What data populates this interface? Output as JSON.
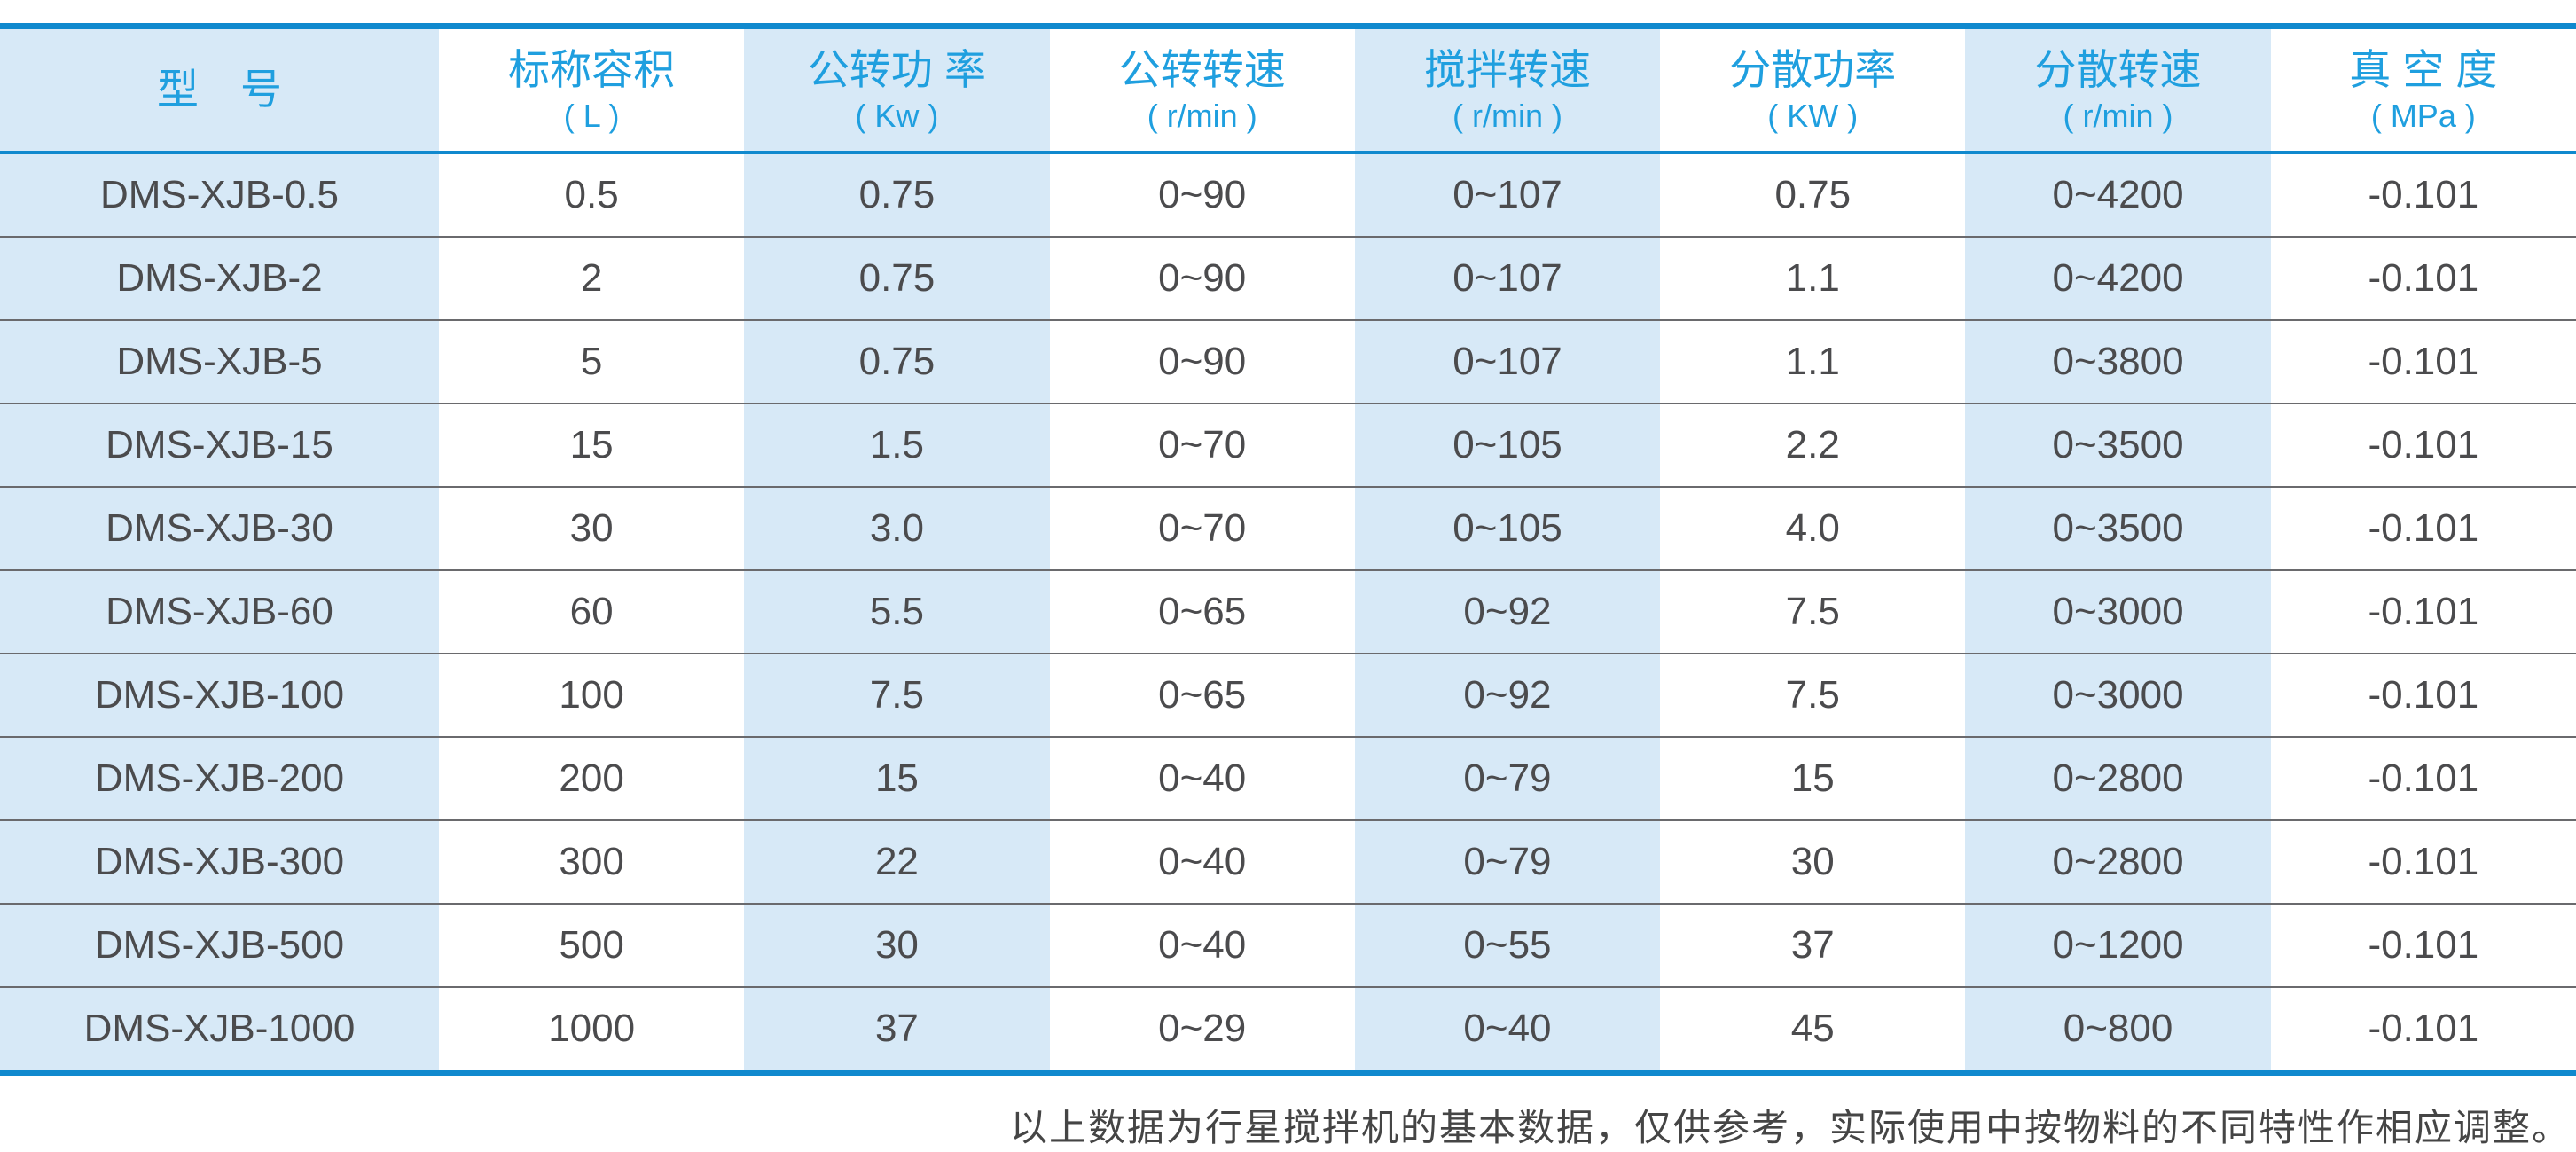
{
  "colors": {
    "accent_blue_border": "#1089CE",
    "header_text_blue": "#1F9FDF",
    "cell_light_blue": "#D7E9F7",
    "body_text_gray": "#4B4B4D",
    "row_divider_gray": "#6A6A6D"
  },
  "chart_data": {
    "type": "table",
    "title": "",
    "columns": [
      {
        "label": "型　号",
        "unit": ""
      },
      {
        "label": "标称容积",
        "unit": "( L )"
      },
      {
        "label": "公转功 率",
        "unit": "( Kw )"
      },
      {
        "label": "公转转速",
        "unit": "( r/min )"
      },
      {
        "label": "搅拌转速",
        "unit": "( r/min )"
      },
      {
        "label": "分散功率",
        "unit": "( KW )"
      },
      {
        "label": "分散转速",
        "unit": "( r/min )"
      },
      {
        "label": "真 空 度",
        "unit": "( MPa )"
      }
    ],
    "rows": [
      [
        "DMS-XJB-0.5",
        "0.5",
        "0.75",
        "0~90",
        "0~107",
        "0.75",
        "0~4200",
        "-0.101"
      ],
      [
        "DMS-XJB-2",
        "2",
        "0.75",
        "0~90",
        "0~107",
        "1.1",
        "0~4200",
        "-0.101"
      ],
      [
        "DMS-XJB-5",
        "5",
        "0.75",
        "0~90",
        "0~107",
        "1.1",
        "0~3800",
        "-0.101"
      ],
      [
        "DMS-XJB-15",
        "15",
        "1.5",
        "0~70",
        "0~105",
        "2.2",
        "0~3500",
        "-0.101"
      ],
      [
        "DMS-XJB-30",
        "30",
        "3.0",
        "0~70",
        "0~105",
        "4.0",
        "0~3500",
        "-0.101"
      ],
      [
        "DMS-XJB-60",
        "60",
        "5.5",
        "0~65",
        "0~92",
        "7.5",
        "0~3000",
        "-0.101"
      ],
      [
        "DMS-XJB-100",
        "100",
        "7.5",
        "0~65",
        "0~92",
        "7.5",
        "0~3000",
        "-0.101"
      ],
      [
        "DMS-XJB-200",
        "200",
        "15",
        "0~40",
        "0~79",
        "15",
        "0~2800",
        "-0.101"
      ],
      [
        "DMS-XJB-300",
        "300",
        "22",
        "0~40",
        "0~79",
        "30",
        "0~2800",
        "-0.101"
      ],
      [
        "DMS-XJB-500",
        "500",
        "30",
        "0~40",
        "0~55",
        "37",
        "0~1200",
        "-0.101"
      ],
      [
        "DMS-XJB-1000",
        "1000",
        "37",
        "0~29",
        "0~40",
        "45",
        "0~800",
        "-0.101"
      ]
    ],
    "footnote": "以上数据为行星搅拌机的基本数据，仅供参考，实际使用中按物料的不同特性作相应调整。"
  }
}
